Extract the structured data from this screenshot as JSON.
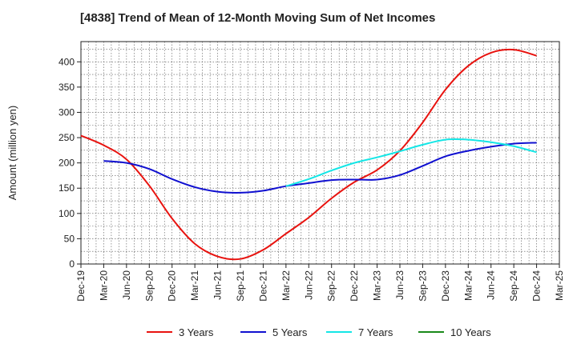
{
  "chart_data": {
    "type": "line",
    "title": "[4838]  Trend of Mean of 12-Month Moving Sum of Net Incomes",
    "ylabel": "Amount (million yen)",
    "xlabel": "",
    "ylim": [
      0,
      440
    ],
    "yticks": [
      0,
      50,
      100,
      150,
      200,
      250,
      300,
      350,
      400
    ],
    "grid": true,
    "legend_position": "bottom",
    "x_ticks": [
      "Dec-19",
      "Mar-20",
      "Jun-20",
      "Sep-20",
      "Dec-20",
      "Mar-21",
      "Jun-21",
      "Sep-21",
      "Dec-21",
      "Mar-22",
      "Jun-22",
      "Sep-22",
      "Dec-22",
      "Mar-23",
      "Jun-23",
      "Sep-23",
      "Dec-23",
      "Mar-24",
      "Jun-24",
      "Sep-24",
      "Dec-24",
      "Mar-25"
    ],
    "x": [
      "Dec-19",
      "Mar-20",
      "Jun-20",
      "Sep-20",
      "Dec-20",
      "Mar-21",
      "Jun-21",
      "Sep-21",
      "Dec-21",
      "Mar-22",
      "Jun-22",
      "Sep-22",
      "Dec-22",
      "Mar-23",
      "Jun-23",
      "Sep-23",
      "Dec-23",
      "Mar-24",
      "Jun-24",
      "Sep-24",
      "Dec-24"
    ],
    "series": [
      {
        "name": "3 Years",
        "color": "#e8130f",
        "values": [
          254,
          235,
          207,
          155,
          90,
          40,
          15,
          10,
          28,
          60,
          92,
          130,
          162,
          186,
          224,
          280,
          345,
          392,
          418,
          424,
          412
        ]
      },
      {
        "name": "5 Years",
        "color": "#1010d0",
        "values": [
          null,
          204,
          200,
          188,
          168,
          152,
          143,
          141,
          145,
          154,
          160,
          166,
          167,
          167,
          176,
          194,
          213,
          224,
          232,
          238,
          240
        ]
      },
      {
        "name": "7 Years",
        "color": "#14e6e6",
        "values": [
          null,
          null,
          null,
          null,
          null,
          null,
          null,
          null,
          null,
          154,
          168,
          185,
          200,
          211,
          223,
          236,
          246,
          246,
          241,
          233,
          221
        ]
      },
      {
        "name": "10 Years",
        "color": "#1a8a1a",
        "values": [
          null,
          null,
          null,
          null,
          null,
          null,
          null,
          null,
          null,
          null,
          null,
          null,
          null,
          null,
          null,
          null,
          null,
          null,
          null,
          null,
          null
        ]
      }
    ]
  }
}
